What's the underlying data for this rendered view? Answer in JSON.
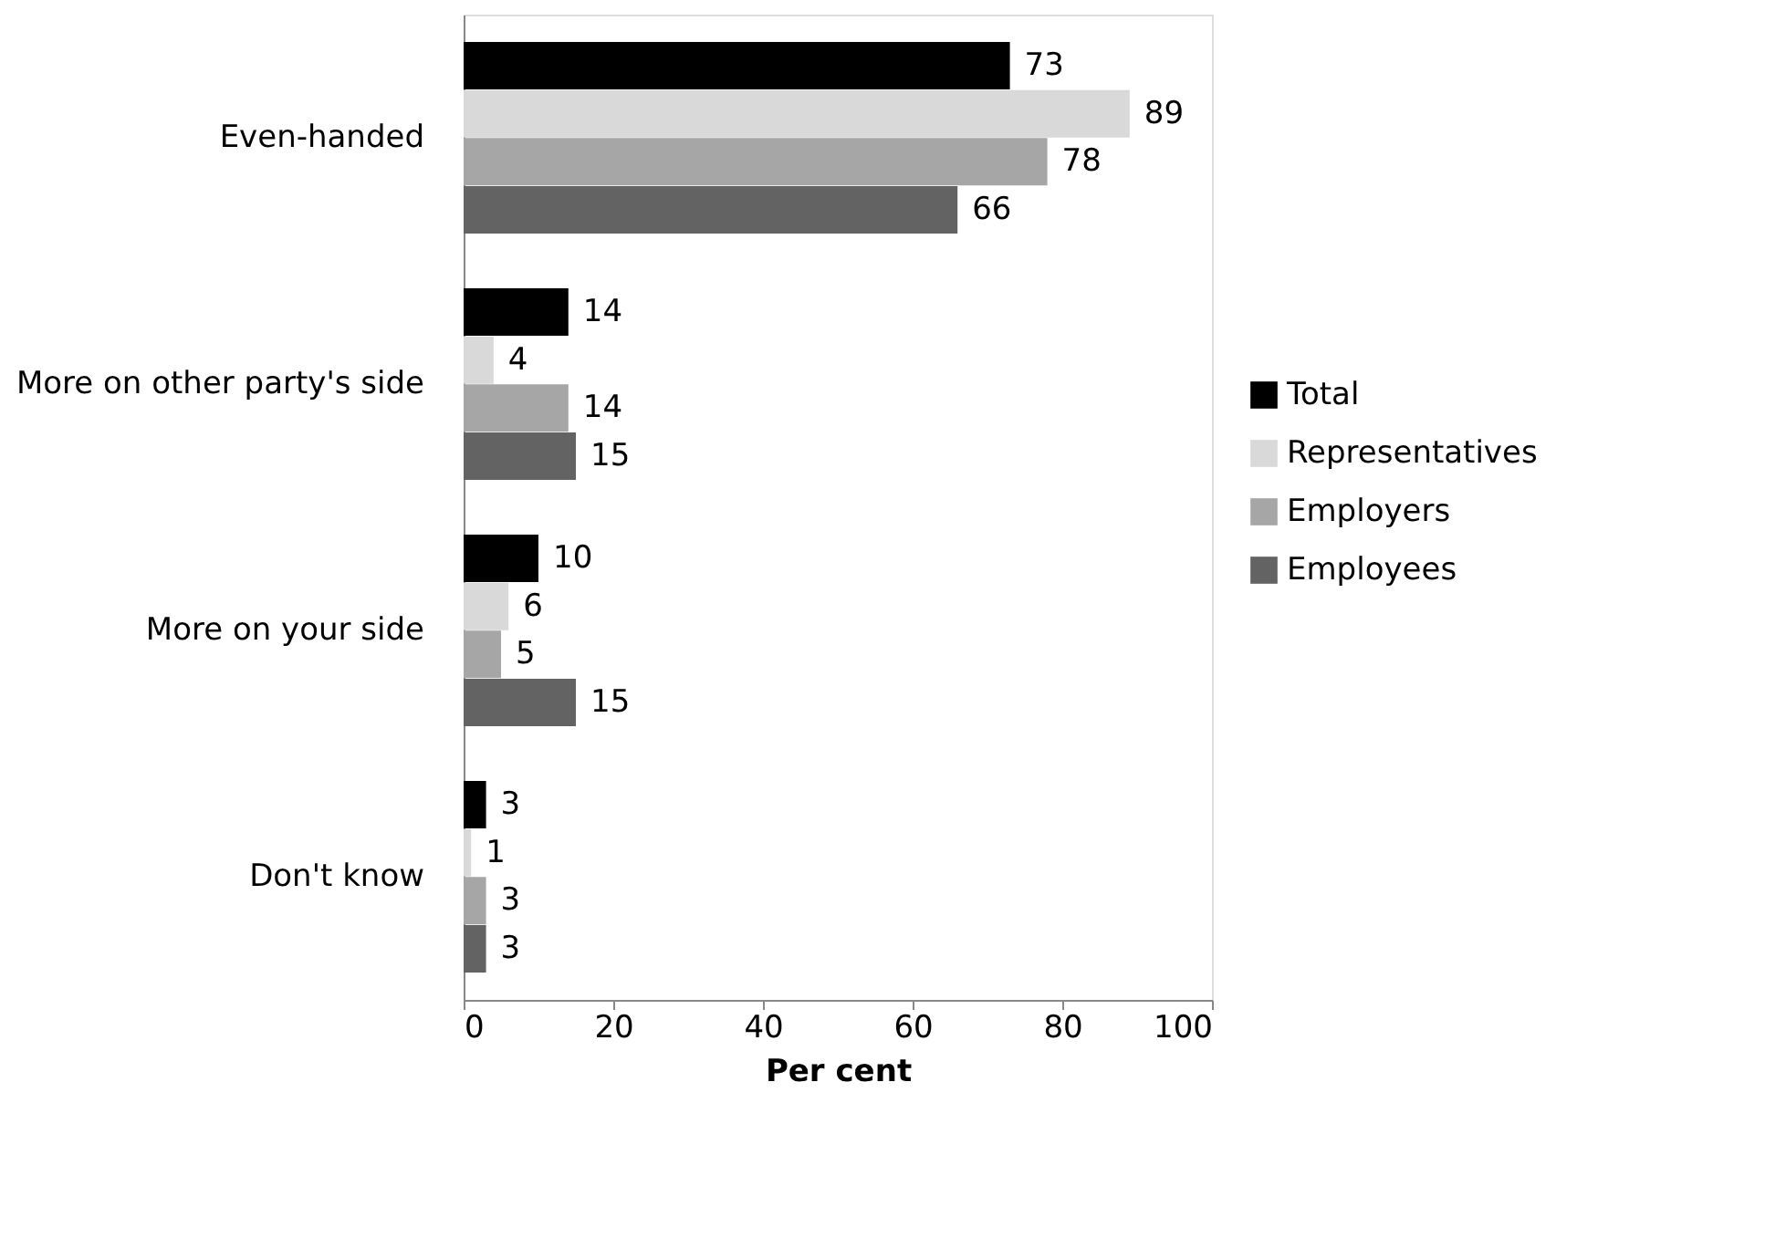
{
  "chart_data": {
    "type": "bar",
    "orientation": "horizontal",
    "xlabel": "Per cent",
    "categories": [
      "Even-handed",
      "More on other party's side",
      "More on your side",
      "Don't know"
    ],
    "series": [
      {
        "name": "Total",
        "color": "#000000",
        "values": [
          73,
          14,
          10,
          3
        ]
      },
      {
        "name": "Representatives",
        "color": "#d9d9d9",
        "values": [
          89,
          4,
          6,
          1
        ]
      },
      {
        "name": "Employers",
        "color": "#a6a6a6",
        "values": [
          78,
          14,
          5,
          3
        ]
      },
      {
        "name": "Employees",
        "color": "#636363",
        "values": [
          66,
          15,
          15,
          3
        ]
      }
    ],
    "xlim": [
      0,
      100
    ],
    "xticks": [
      0,
      20,
      40,
      60,
      80,
      100
    ],
    "grid": false,
    "legend": "right",
    "data_labels": true
  }
}
